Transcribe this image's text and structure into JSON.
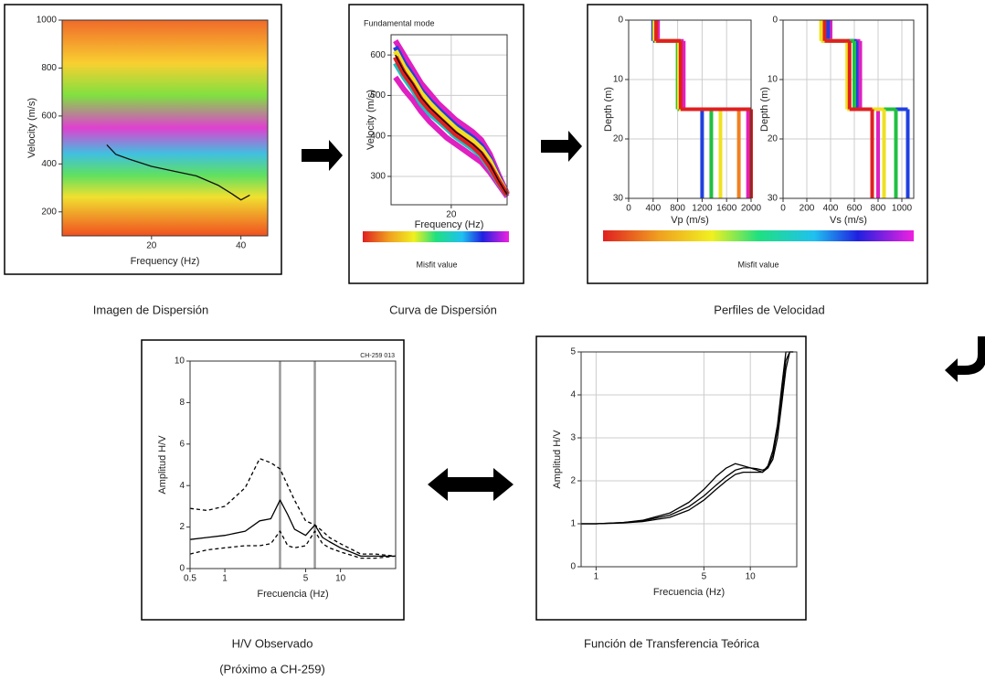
{
  "chart_data": [
    {
      "type": "line",
      "caption": [
        "Imagen de Dispersión"
      ],
      "x_label": "Frequency (Hz)",
      "y_label": "Velocity (m/s)",
      "xlim": [
        0,
        46
      ],
      "xticks": [
        20,
        40
      ],
      "ylim": [
        100,
        1000
      ],
      "yticks": [
        200,
        400,
        600,
        800,
        1000
      ],
      "grid": false,
      "x": [
        10,
        12,
        15,
        20,
        25,
        30,
        35,
        38,
        40,
        42
      ],
      "series": [
        {
          "color": "#111111",
          "values": [
            480,
            440,
            420,
            390,
            370,
            350,
            310,
            275,
            250,
            270
          ]
        }
      ]
    },
    {
      "type": "line",
      "title": "Fundamental mode",
      "caption": [
        "Curva de Dispersión"
      ],
      "x_label": "Frequency (Hz)",
      "y_label": "Velocity (m/s)",
      "colorbar_label": "Misfit value",
      "xlim": [
        6,
        33
      ],
      "xticks": [
        20
      ],
      "ylim": [
        230,
        650
      ],
      "yticks": [
        300,
        400,
        500,
        600
      ],
      "grid": true,
      "x": [
        7,
        9,
        11,
        13,
        15,
        17,
        19,
        21,
        23,
        25,
        27,
        29,
        31,
        33
      ],
      "series": [
        {
          "color": "#e020c0",
          "values": [
            635,
            600,
            565,
            530,
            505,
            480,
            460,
            440,
            425,
            410,
            390,
            355,
            305,
            258
          ]
        },
        {
          "color": "#e020c0",
          "values": [
            545,
            515,
            490,
            460,
            435,
            415,
            395,
            380,
            365,
            350,
            335,
            310,
            280,
            250
          ]
        },
        {
          "color": "#2040e0",
          "values": [
            620,
            580,
            548,
            512,
            487,
            465,
            445,
            425,
            410,
            395,
            375,
            343,
            298,
            256
          ]
        },
        {
          "color": "#20c0c0",
          "values": [
            580,
            545,
            515,
            480,
            455,
            437,
            418,
            398,
            383,
            368,
            350,
            320,
            285,
            254
          ]
        },
        {
          "color": "#f0e020",
          "values": [
            610,
            570,
            540,
            505,
            480,
            458,
            438,
            418,
            403,
            388,
            368,
            337,
            294,
            256
          ]
        },
        {
          "color": "#e02020",
          "values": [
            595,
            555,
            525,
            490,
            465,
            445,
            425,
            405,
            390,
            375,
            355,
            325,
            288,
            255
          ]
        },
        {
          "color": "#000000",
          "values": [
            600,
            560,
            530,
            495,
            470,
            450,
            430,
            410,
            395,
            380,
            360,
            330,
            290,
            255
          ]
        }
      ]
    },
    {
      "type": "step",
      "caption": [
        "Perfiles de Velocidad"
      ],
      "x_label": "Vp (m/s)",
      "y_label": "Depth (m)",
      "xlim": [
        0,
        2000
      ],
      "xticks": [
        0,
        400,
        800,
        1200,
        1600,
        2000
      ],
      "ylim": [
        0,
        30
      ],
      "yticks": [
        0,
        10,
        20,
        30
      ],
      "y_inverted": true,
      "grid": true,
      "depths": [
        0,
        3.5,
        15,
        30
      ],
      "series": [
        {
          "color": "#e020c0",
          "values": [
            480,
            900,
            1950
          ]
        },
        {
          "color": "#2040e0",
          "values": [
            400,
            830,
            1200
          ]
        },
        {
          "color": "#20c040",
          "values": [
            420,
            800,
            1350
          ]
        },
        {
          "color": "#f0e020",
          "values": [
            420,
            820,
            1500
          ]
        },
        {
          "color": "#f08020",
          "values": [
            450,
            850,
            1800
          ]
        },
        {
          "color": "#e02020",
          "values": [
            450,
            850,
            2000
          ]
        }
      ]
    },
    {
      "type": "step",
      "x_label": "Vs (m/s)",
      "y_label": "Depth (m)",
      "colorbar_label": "Misfit value",
      "xlim": [
        0,
        1100
      ],
      "xticks": [
        0,
        200,
        400,
        600,
        800,
        1000
      ],
      "ylim": [
        0,
        30
      ],
      "yticks": [
        0,
        10,
        20,
        30
      ],
      "y_inverted": true,
      "grid": true,
      "depths": [
        0,
        3.5,
        15,
        30
      ],
      "series": [
        {
          "color": "#e020c0",
          "values": [
            400,
            650,
            800
          ]
        },
        {
          "color": "#2040e0",
          "values": [
            380,
            620,
            1050
          ]
        },
        {
          "color": "#20c040",
          "values": [
            330,
            600,
            950
          ]
        },
        {
          "color": "#f0e020",
          "values": [
            320,
            540,
            850
          ]
        },
        {
          "color": "#e02020",
          "values": [
            350,
            560,
            750
          ]
        }
      ]
    },
    {
      "type": "line",
      "caption": [
        "H/V Observado",
        "(Próximo a CH-259)"
      ],
      "annotation": "CH-259 013",
      "x_label": "Frecuencia (Hz)",
      "y_label": "Amplitud H/V",
      "xlog": true,
      "xlim": [
        0.5,
        30
      ],
      "xticks": [
        0.5,
        1,
        5,
        10
      ],
      "ylim": [
        0,
        10
      ],
      "yticks": [
        0,
        2,
        4,
        6,
        8,
        10
      ],
      "grid": false,
      "vlines": [
        3,
        6
      ],
      "x": [
        0.5,
        0.7,
        1,
        1.5,
        2,
        2.5,
        3,
        3.5,
        4,
        5,
        6,
        7,
        8,
        10,
        15,
        20,
        30
      ],
      "series": [
        {
          "color": "#000000",
          "dashed": false,
          "values": [
            1.4,
            1.5,
            1.6,
            1.8,
            2.3,
            2.4,
            3.3,
            2.6,
            1.9,
            1.6,
            2.1,
            1.5,
            1.3,
            1.0,
            0.6,
            0.6,
            0.6
          ]
        },
        {
          "color": "#000000",
          "dashed": true,
          "values": [
            2.9,
            2.8,
            3.0,
            3.9,
            5.3,
            5.1,
            4.8,
            4.0,
            3.3,
            2.3,
            2.1,
            1.8,
            1.5,
            1.2,
            0.7,
            0.7,
            0.6
          ]
        },
        {
          "color": "#000000",
          "dashed": true,
          "values": [
            0.7,
            0.9,
            1.0,
            1.1,
            1.1,
            1.2,
            1.8,
            1.1,
            1.0,
            1.1,
            1.8,
            1.2,
            1.0,
            0.8,
            0.5,
            0.5,
            0.6
          ]
        }
      ]
    },
    {
      "type": "line",
      "caption": [
        "Función de Transferencia Teórica"
      ],
      "x_label": "Frecuencia (Hz)",
      "y_label": "Amplitud H/V",
      "xlog": true,
      "xlim": [
        0.8,
        20
      ],
      "xticks": [
        1,
        5,
        10
      ],
      "ylim": [
        0,
        5
      ],
      "yticks": [
        0,
        1,
        2,
        3,
        4,
        5
      ],
      "grid": true,
      "x": [
        0.8,
        1,
        1.5,
        2,
        3,
        4,
        5,
        6,
        7,
        8,
        9,
        10,
        11,
        12,
        13,
        14,
        15,
        16,
        17,
        18,
        19
      ],
      "series": [
        {
          "color": "#000000",
          "dashed": false,
          "values": [
            1.0,
            1.0,
            1.03,
            1.07,
            1.2,
            1.4,
            1.65,
            1.9,
            2.1,
            2.25,
            2.3,
            2.3,
            2.28,
            2.25,
            2.3,
            2.5,
            3.0,
            3.8,
            4.6,
            5.0,
            5.0
          ]
        },
        {
          "color": "#000000",
          "dashed": false,
          "values": [
            1.0,
            1.0,
            1.03,
            1.08,
            1.25,
            1.5,
            1.8,
            2.1,
            2.3,
            2.4,
            2.35,
            2.3,
            2.25,
            2.2,
            2.3,
            2.6,
            3.2,
            4.0,
            4.8,
            5.0,
            5.0
          ]
        },
        {
          "color": "#000000",
          "dashed": false,
          "values": [
            1.0,
            1.0,
            1.02,
            1.05,
            1.15,
            1.32,
            1.55,
            1.8,
            2.0,
            2.15,
            2.2,
            2.2,
            2.2,
            2.2,
            2.35,
            2.7,
            3.3,
            4.2,
            5.0,
            5.0,
            5.0
          ]
        }
      ]
    }
  ]
}
